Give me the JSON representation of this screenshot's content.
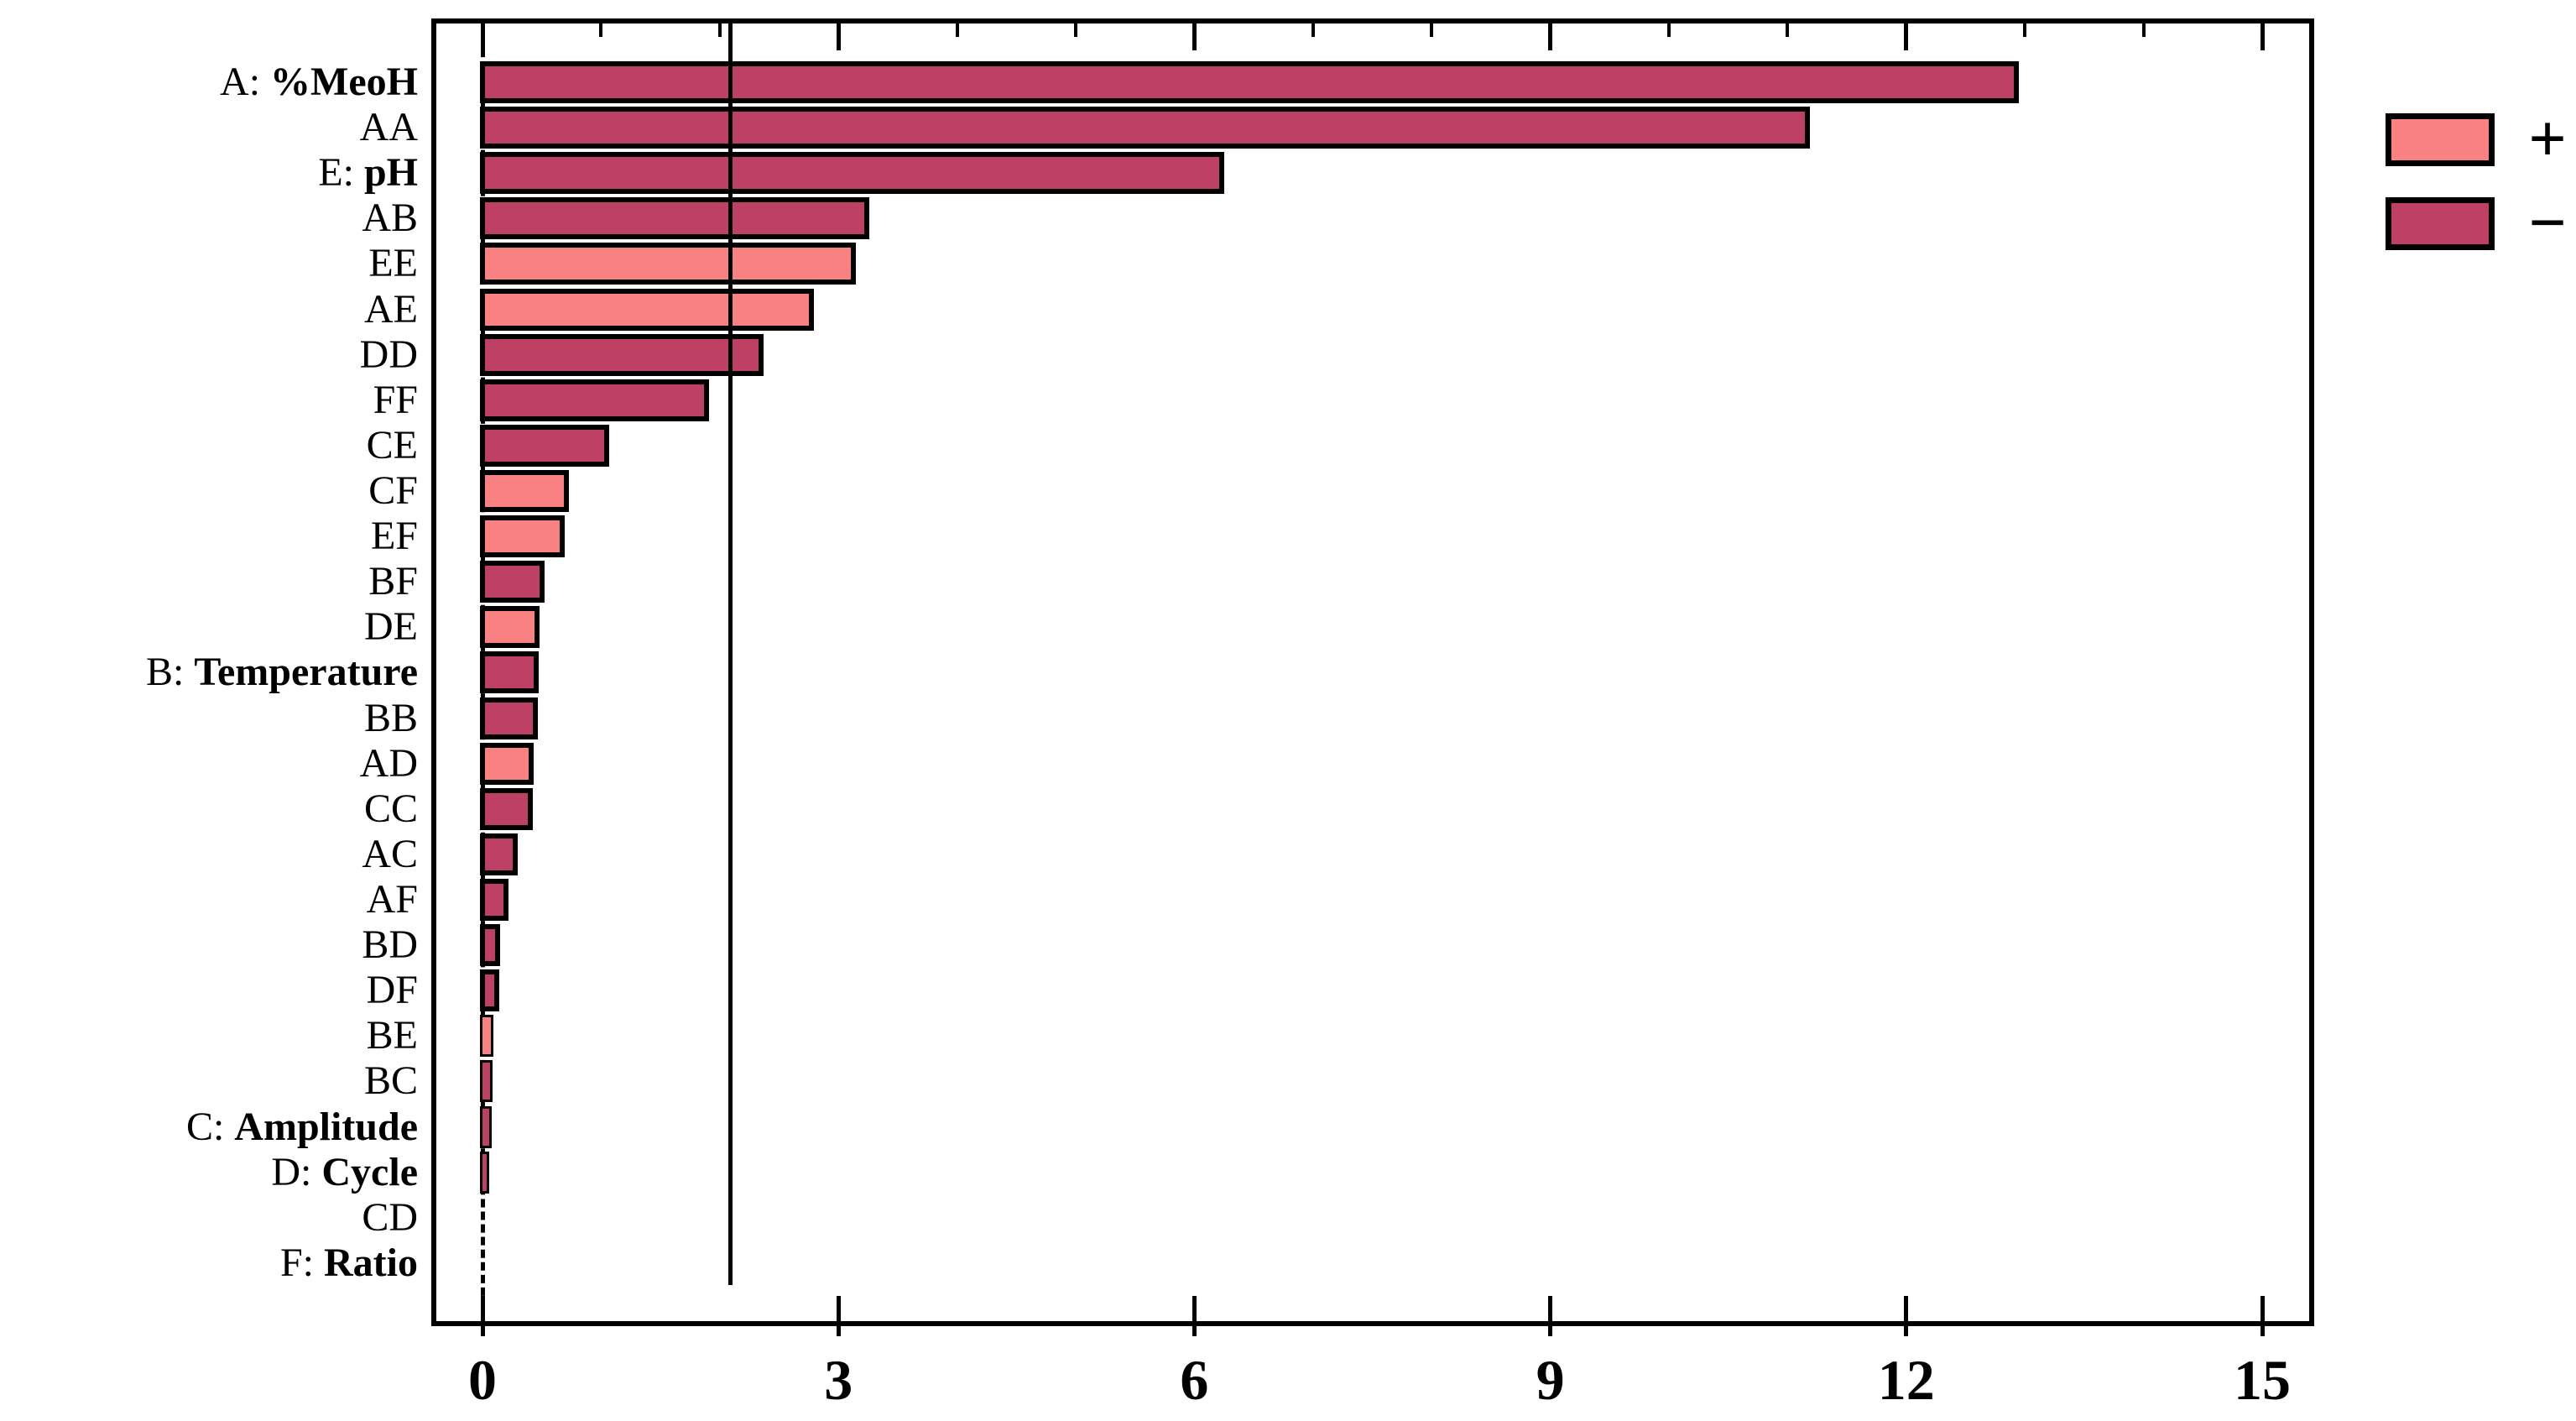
{
  "chart_data": {
    "type": "bar",
    "orientation": "horizontal",
    "title": "",
    "x_axis": {
      "min": 0,
      "max": 15.1,
      "major_ticks": [
        0,
        3,
        6,
        9,
        12,
        15
      ],
      "tick_labels": [
        "0",
        "3",
        "6",
        "9",
        "12",
        "15"
      ],
      "minor_tick_step": 1,
      "grid": false
    },
    "reference_line": {
      "value": 2.09,
      "style": "solid"
    },
    "zero_line": {
      "value": 0,
      "style": "dashed"
    },
    "colors": {
      "plus": "#FA8181",
      "minus": "#BE4165",
      "bar_border": "#000000"
    },
    "legend": {
      "position": "top-right",
      "entries": [
        {
          "symbol": "+",
          "color": "#FA8181"
        },
        {
          "symbol": "−",
          "color": "#BE4165"
        }
      ]
    },
    "rows": [
      {
        "label": "A: %MeoH",
        "prefix": "A: ",
        "emph": "%MeoH",
        "value": 12.95,
        "sign": "-"
      },
      {
        "label": "AA",
        "value": 11.19,
        "sign": "-"
      },
      {
        "label": "E: pH",
        "prefix": "E: ",
        "emph": "pH",
        "value": 6.25,
        "sign": "-"
      },
      {
        "label": "AB",
        "value": 3.26,
        "sign": "-"
      },
      {
        "label": "EE",
        "value": 3.15,
        "sign": "+"
      },
      {
        "label": "AE",
        "value": 2.79,
        "sign": "+"
      },
      {
        "label": "DD",
        "value": 2.37,
        "sign": "-"
      },
      {
        "label": "FF",
        "value": 1.91,
        "sign": "-"
      },
      {
        "label": "CE",
        "value": 1.07,
        "sign": "-"
      },
      {
        "label": "CF",
        "value": 0.73,
        "sign": "+"
      },
      {
        "label": "EF",
        "value": 0.69,
        "sign": "+"
      },
      {
        "label": "BF",
        "value": 0.52,
        "sign": "-"
      },
      {
        "label": "DE",
        "value": 0.48,
        "sign": "+"
      },
      {
        "label": "B: Temperature",
        "prefix": "B: ",
        "emph": "Temperature",
        "value": 0.475,
        "sign": "-"
      },
      {
        "label": "BB",
        "value": 0.47,
        "sign": "-"
      },
      {
        "label": "AD",
        "value": 0.43,
        "sign": "+"
      },
      {
        "label": "CC",
        "value": 0.425,
        "sign": "-"
      },
      {
        "label": "AC",
        "value": 0.3,
        "sign": "-"
      },
      {
        "label": "AF",
        "value": 0.22,
        "sign": "-"
      },
      {
        "label": "BD",
        "value": 0.15,
        "sign": "-"
      },
      {
        "label": "DF",
        "value": 0.14,
        "sign": "-"
      },
      {
        "label": "BE",
        "value": 0.095,
        "sign": "+"
      },
      {
        "label": "BC",
        "value": 0.085,
        "sign": "-"
      },
      {
        "label": "C: Amplitude",
        "prefix": "C: ",
        "emph": "Amplitude",
        "value": 0.075,
        "sign": "-"
      },
      {
        "label": "D: Cycle",
        "prefix": "D: ",
        "emph": "Cycle",
        "value": 0.06,
        "sign": "-"
      },
      {
        "label": "CD",
        "value": 0.012,
        "sign": "-"
      },
      {
        "label": "F: Ratio",
        "prefix": "F: ",
        "emph": "Ratio",
        "value": 0.006,
        "sign": "-"
      }
    ]
  }
}
